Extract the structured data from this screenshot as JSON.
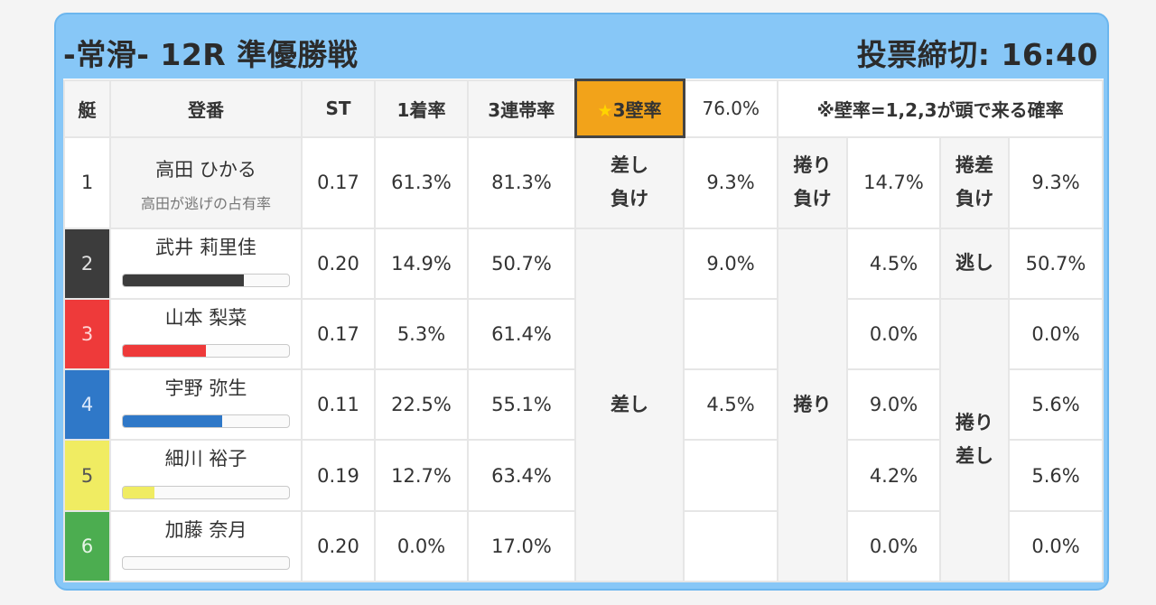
{
  "header": {
    "title": "-常滑- 12R 準優勝戦",
    "deadline": "投票締切: 16:40"
  },
  "columns": {
    "boat": "艇",
    "name": "登番",
    "st": "ST",
    "first_rate": "1着率",
    "third_rate": "3連帯率",
    "wall_rate_label": "3壁率",
    "wall_rate_value": "76.0%",
    "wall_note": "※壁率=1,2,3が頭で来る確率"
  },
  "racers": [
    {
      "boat": "1",
      "name": "高田 ひかる",
      "note": "高田が逃げの占有率",
      "st": "0.17",
      "first": "61.3%",
      "third": "81.3%",
      "color": "#ffffff"
    },
    {
      "boat": "2",
      "name": "武井 莉里佳",
      "st": "0.20",
      "first": "14.9%",
      "third": "50.7%",
      "color": "#3c3c3c",
      "bar_fraction": 0.73
    },
    {
      "boat": "3",
      "name": "山本 梨菜",
      "st": "0.17",
      "first": "5.3%",
      "third": "61.4%",
      "color": "#ee3a3a",
      "bar_fraction": 0.5
    },
    {
      "boat": "4",
      "name": "宇野 弥生",
      "st": "0.11",
      "first": "22.5%",
      "third": "55.1%",
      "color": "#2f78c8",
      "bar_fraction": 0.6
    },
    {
      "boat": "5",
      "name": "細川 裕子",
      "st": "0.19",
      "first": "12.7%",
      "third": "63.4%",
      "color": "#f0ec62",
      "bar_fraction": 0.19
    },
    {
      "boat": "6",
      "name": "加藤 奈月",
      "st": "0.20",
      "first": "0.0%",
      "third": "17.0%",
      "color": "#4cad50",
      "bar_fraction": 0.0
    }
  ],
  "tactics": {
    "row1": {
      "sashi_make": "差し\n負け",
      "sashi_make_val": "9.3%",
      "makuri_make": "捲り\n負け",
      "makuri_make_val": "14.7%",
      "makurizashi_make": "捲差\n負け",
      "makurizashi_make_val": "9.3%"
    },
    "sashi": {
      "label": "差し",
      "r2": "9.0%",
      "r4": "4.5%"
    },
    "makuri": {
      "label": "捲り",
      "r2": "4.5%",
      "r3": "0.0%",
      "r4": "9.0%",
      "r5": "4.2%",
      "r6": "0.0%"
    },
    "nige": {
      "label": "逃し",
      "val": "50.7%"
    },
    "makurizashi": {
      "label": "捲り\n差し",
      "r3": "0.0%",
      "r4": "5.6%",
      "r5": "5.6%",
      "r6": "0.0%"
    }
  }
}
